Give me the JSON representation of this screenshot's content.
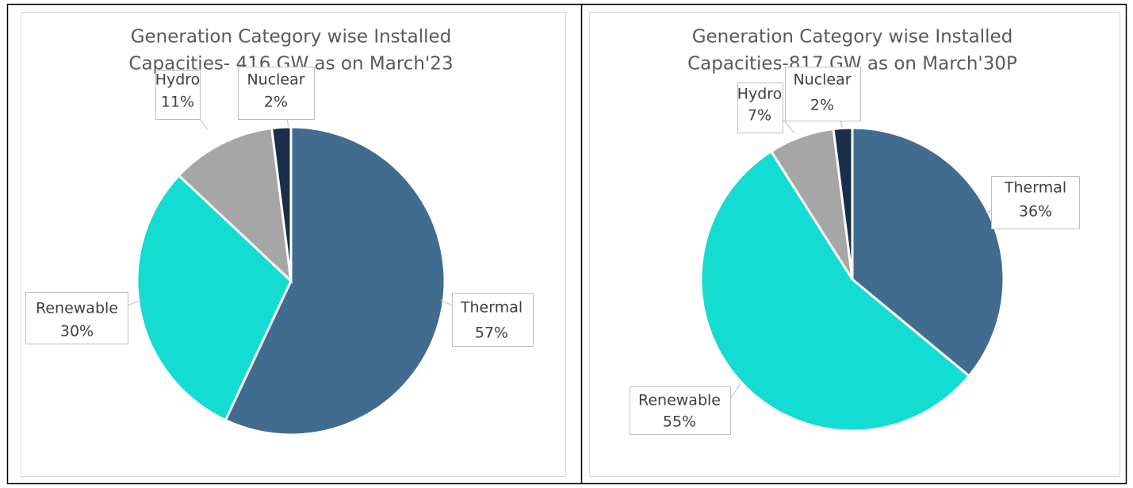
{
  "chart_data": [
    {
      "type": "pie",
      "title": [
        "Generation Category wise Installed",
        "Capacities- 416 GW as on March'23"
      ],
      "categories": [
        "Thermal",
        "Renewable",
        "Hydro",
        "Nuclear"
      ],
      "values": [
        57,
        30,
        11,
        2
      ],
      "value_labels": [
        "57%",
        "30%",
        "11%",
        "2%"
      ],
      "colors": [
        "#416b8f",
        "#13dcd3",
        "#a6a6a6",
        "#1a2e4a"
      ]
    },
    {
      "type": "pie",
      "title": [
        "Generation Category wise Installed",
        "Capacities-817 GW as on March'30P"
      ],
      "categories": [
        "Thermal",
        "Renewable",
        "Hydro",
        "Nuclear"
      ],
      "values": [
        36,
        55,
        7,
        2
      ],
      "value_labels": [
        "36%",
        "55%",
        "7%",
        "2%"
      ],
      "colors": [
        "#416b8f",
        "#13dcd3",
        "#a6a6a6",
        "#1a2e4a"
      ]
    }
  ]
}
